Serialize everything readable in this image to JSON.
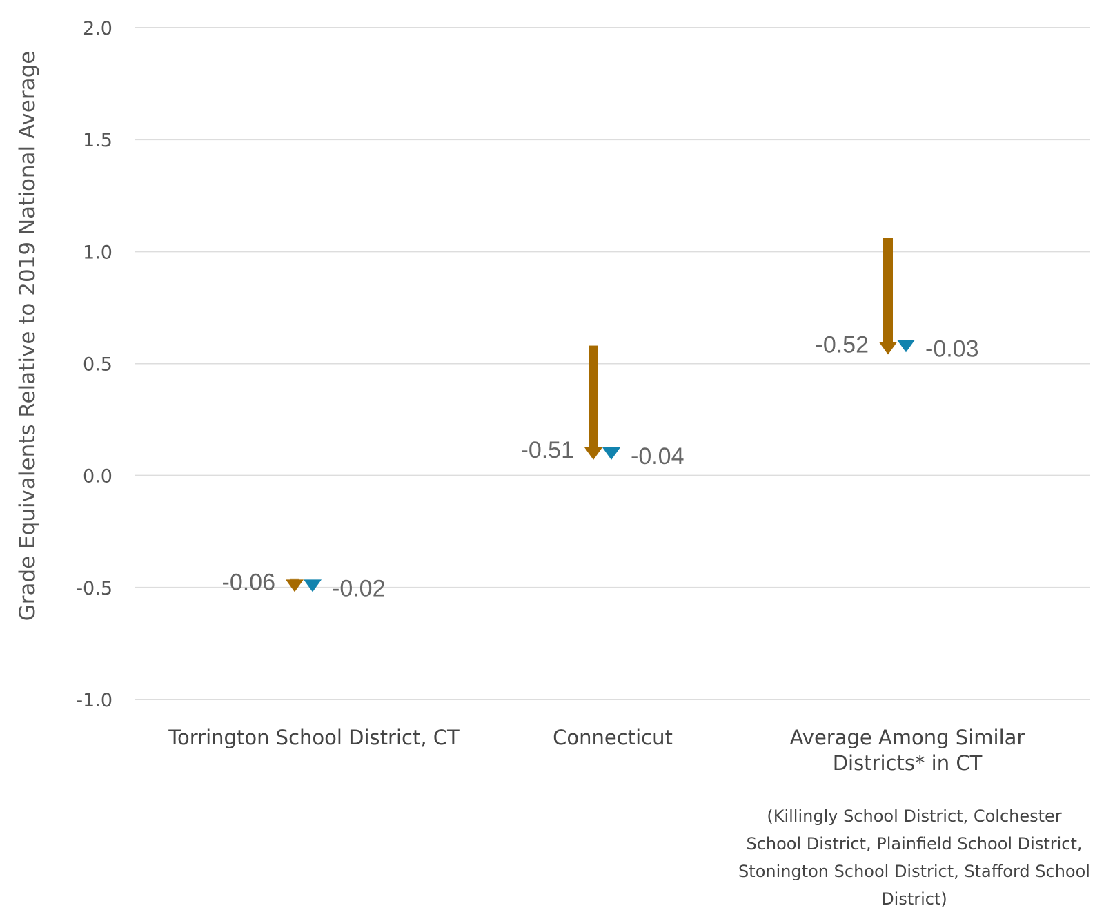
{
  "chart_data": {
    "type": "arrow",
    "ylabel": "Grade Equivalents Relative to 2019 National Average",
    "ylim": [
      -1.0,
      2.0
    ],
    "yticks": [
      "2.0",
      "1.5",
      "1.0",
      "0.5",
      "0.0",
      "-0.5",
      "-1.0"
    ],
    "grid": true,
    "colors": {
      "change_a": "#A66A00",
      "change_b": "#1283AE"
    },
    "categories": [
      {
        "label_lines": [
          "Torrington School District, CT"
        ],
        "note_lines": []
      },
      {
        "label_lines": [
          "Connecticut"
        ],
        "note_lines": []
      },
      {
        "label_lines": [
          "Average Among Similar",
          "Districts* in CT"
        ],
        "note_lines": [
          "(Killingly School District, Colchester",
          "School District, Plainfield School District,",
          "Stonington School District, Stafford School",
          "District)"
        ]
      }
    ],
    "series": [
      {
        "color": "#A66A00",
        "start": [
          -0.46,
          0.58,
          1.06
        ],
        "end": [
          -0.52,
          0.07,
          0.54
        ],
        "labels": [
          "-0.06",
          "-0.51",
          "-0.52"
        ]
      },
      {
        "color": "#1283AE",
        "start": [
          -0.5,
          0.11,
          0.58
        ],
        "end": [
          -0.52,
          0.07,
          0.55
        ],
        "labels": [
          "-0.02",
          "-0.04",
          "-0.03"
        ]
      }
    ]
  }
}
